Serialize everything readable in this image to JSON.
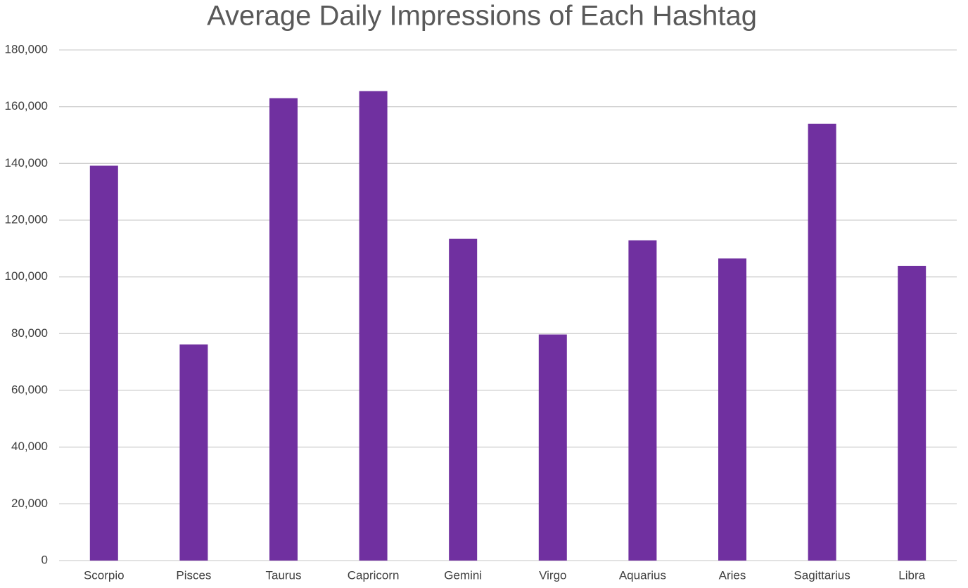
{
  "chart_data": {
    "type": "bar",
    "title": "Average Daily Impressions of Each Hashtag",
    "categories": [
      "Scorpio",
      "Pisces",
      "Taurus",
      "Capricorn",
      "Gemini",
      "Virgo",
      "Aquarius",
      "Aries",
      "Sagittarius",
      "Libra"
    ],
    "values": [
      139200,
      76200,
      163000,
      165500,
      113400,
      79700,
      112900,
      106500,
      154000,
      103900
    ],
    "color": "#7030a0",
    "ylim": [
      0,
      180000
    ],
    "yticks": [
      0,
      {
        "value": 20000,
        "label": "20,000"
      },
      {
        "value": 40000,
        "label": "40,000"
      },
      {
        "value": 60000,
        "label": "60,000"
      },
      {
        "value": 80000,
        "label": "80,000"
      },
      {
        "value": 100000,
        "label": "100,000"
      },
      {
        "value": 120000,
        "label": "120,000"
      },
      {
        "value": 140000,
        "label": "140,000"
      },
      {
        "value": 160000,
        "label": "160,000"
      },
      {
        "value": 180000,
        "label": "180,000"
      }
    ],
    "grid": true
  }
}
